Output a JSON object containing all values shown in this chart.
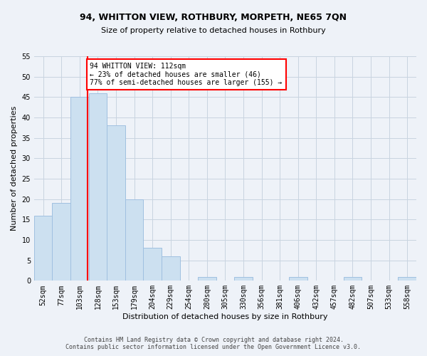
{
  "title1": "94, WHITTON VIEW, ROTHBURY, MORPETH, NE65 7QN",
  "title2": "Size of property relative to detached houses in Rothbury",
  "xlabel": "Distribution of detached houses by size in Rothbury",
  "ylabel": "Number of detached properties",
  "footer1": "Contains HM Land Registry data © Crown copyright and database right 2024.",
  "footer2": "Contains public sector information licensed under the Open Government Licence v3.0.",
  "bin_labels": [
    "52sqm",
    "77sqm",
    "103sqm",
    "128sqm",
    "153sqm",
    "179sqm",
    "204sqm",
    "229sqm",
    "254sqm",
    "280sqm",
    "305sqm",
    "330sqm",
    "356sqm",
    "381sqm",
    "406sqm",
    "432sqm",
    "457sqm",
    "482sqm",
    "507sqm",
    "533sqm",
    "558sqm"
  ],
  "bar_heights": [
    16,
    19,
    45,
    46,
    38,
    20,
    8,
    6,
    0,
    1,
    0,
    1,
    0,
    0,
    1,
    0,
    0,
    1,
    0,
    0,
    1
  ],
  "bar_color": "#cce0f0",
  "bar_edgecolor": "#a0c0e0",
  "vline_x_index": 2.42,
  "annotation_text": "94 WHITTON VIEW: 112sqm\n← 23% of detached houses are smaller (46)\n77% of semi-detached houses are larger (155) →",
  "annotation_box_color": "white",
  "annotation_box_edgecolor": "red",
  "vline_color": "red",
  "ylim": [
    0,
    55
  ],
  "yticks": [
    0,
    5,
    10,
    15,
    20,
    25,
    30,
    35,
    40,
    45,
    50,
    55
  ],
  "grid_color": "#c8d4e0",
  "bg_color": "#eef2f8",
  "title_fontsize": 9,
  "subtitle_fontsize": 8,
  "ylabel_fontsize": 8,
  "xlabel_fontsize": 8,
  "tick_fontsize": 7,
  "annot_fontsize": 7,
  "footer_fontsize": 6
}
